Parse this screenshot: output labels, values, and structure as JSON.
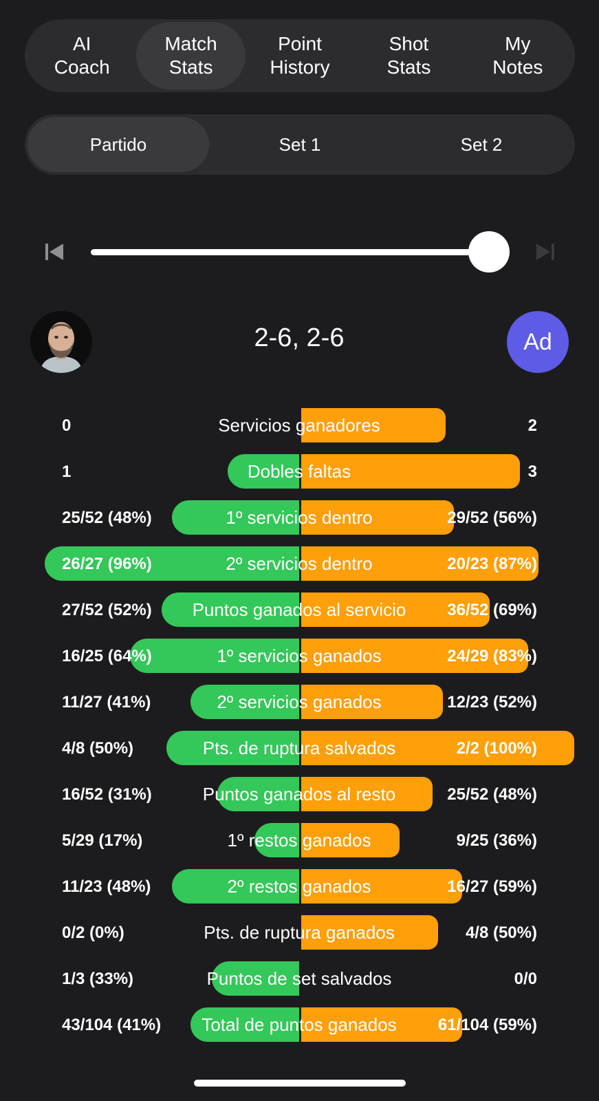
{
  "top_tabs": [
    {
      "label": "AI\nCoach",
      "active": false
    },
    {
      "label": "Match\nStats",
      "active": true
    },
    {
      "label": "Point\nHistory",
      "active": false
    },
    {
      "label": "Shot\nStats",
      "active": false
    },
    {
      "label": "My\nNotes",
      "active": false
    }
  ],
  "segments": [
    {
      "label": "Partido",
      "active": true
    },
    {
      "label": "Set 1",
      "active": false
    },
    {
      "label": "Set 2",
      "active": false
    }
  ],
  "slider": {
    "value_fraction": 1.0
  },
  "score": "2-6, 2-6",
  "opponent": {
    "initials": "Ad",
    "color": "#5e5ce6"
  },
  "colors": {
    "player": "#34c759",
    "opponent": "#ff9f0a",
    "background": "#1c1c1e"
  },
  "stats": [
    {
      "label": "Servicios ganadores",
      "left": "0",
      "right": "2",
      "left_fraction": 0,
      "right_fraction": 0.53
    },
    {
      "label": "Dobles faltas",
      "left": "1",
      "right": "3",
      "left_fraction": 0.27,
      "right_fraction": 0.8
    },
    {
      "label": "1º servicios dentro",
      "left": "25/52 (48%)",
      "right": "29/52 (56%)",
      "left_fraction": 0.48,
      "right_fraction": 0.56
    },
    {
      "label": "2º servicios dentro",
      "left": "26/27 (96%)",
      "right": "20/23 (87%)",
      "left_fraction": 0.96,
      "right_fraction": 0.87
    },
    {
      "label": "Puntos ganados al servicio",
      "left": "27/52 (52%)",
      "right": "36/52 (69%)",
      "left_fraction": 0.52,
      "right_fraction": 0.69
    },
    {
      "label": "1º servicios ganados",
      "left": "16/25 (64%)",
      "right": "24/29 (83%)",
      "left_fraction": 0.64,
      "right_fraction": 0.83
    },
    {
      "label": "2º servicios ganados",
      "left": "11/27 (41%)",
      "right": "12/23 (52%)",
      "left_fraction": 0.41,
      "right_fraction": 0.52
    },
    {
      "label": "Pts. de ruptura salvados",
      "left": "4/8 (50%)",
      "right": "2/2 (100%)",
      "left_fraction": 0.5,
      "right_fraction": 1.0
    },
    {
      "label": "Puntos ganados al resto",
      "left": "16/52 (31%)",
      "right": "25/52 (48%)",
      "left_fraction": 0.31,
      "right_fraction": 0.48
    },
    {
      "label": "1º restos ganados",
      "left": "5/29 (17%)",
      "right": "9/25 (36%)",
      "left_fraction": 0.17,
      "right_fraction": 0.36
    },
    {
      "label": "2º restos ganados",
      "left": "11/23 (48%)",
      "right": "16/27 (59%)",
      "left_fraction": 0.48,
      "right_fraction": 0.59
    },
    {
      "label": "Pts. de ruptura ganados",
      "left": "0/2 (0%)",
      "right": "4/8 (50%)",
      "left_fraction": 0,
      "right_fraction": 0.5
    },
    {
      "label": "Puntos de set salvados",
      "left": "1/3 (33%)",
      "right": "0/0",
      "left_fraction": 0.33,
      "right_fraction": 0
    },
    {
      "label": "Total de puntos ganados",
      "left": "43/104 (41%)",
      "right": "61/104 (59%)",
      "left_fraction": 0.41,
      "right_fraction": 0.59
    }
  ]
}
